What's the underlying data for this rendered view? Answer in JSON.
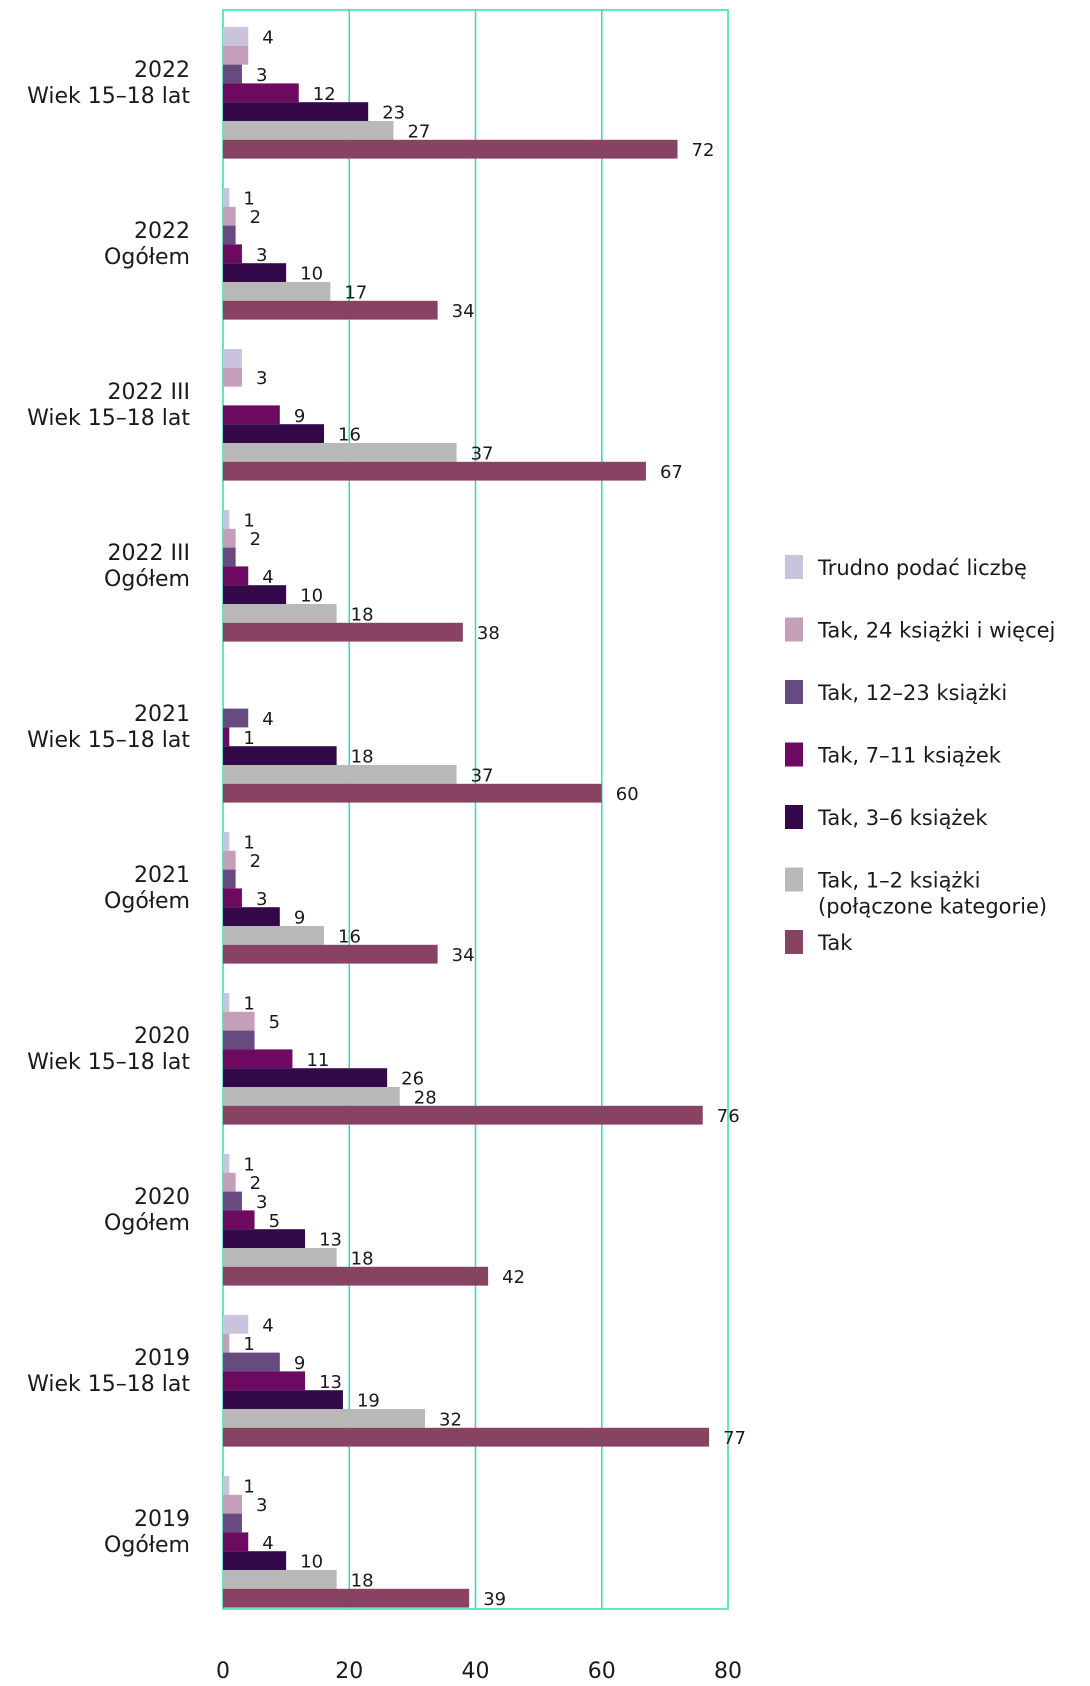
{
  "chart_data": {
    "type": "bar",
    "orientation": "horizontal",
    "xlim": [
      0,
      80
    ],
    "x_ticks": [
      "0",
      "20",
      "40",
      "60",
      "80"
    ],
    "grid": true,
    "legend_position": "right",
    "categories": [
      {
        "line1": "2022",
        "line2": "Wiek 15–18 lat"
      },
      {
        "line1": "2022",
        "line2": "Ogółem"
      },
      {
        "line1": "2022 III",
        "line2": "Wiek 15–18 lat"
      },
      {
        "line1": "2022 III",
        "line2": "Ogółem"
      },
      {
        "line1": "2021",
        "line2": "Wiek 15–18 lat"
      },
      {
        "line1": "2021",
        "line2": "Ogółem"
      },
      {
        "line1": "2020",
        "line2": "Wiek 15–18 lat"
      },
      {
        "line1": "2020",
        "line2": "Ogółem"
      },
      {
        "line1": "2019",
        "line2": "Wiek 15–18 lat"
      },
      {
        "line1": "2019",
        "line2": "Ogółem"
      }
    ],
    "series": [
      {
        "name": "Trudno podać liczbę",
        "color": "#c9c3dd",
        "values": [
          4,
          1,
          3,
          1,
          null,
          1,
          1,
          1,
          4,
          1
        ]
      },
      {
        "name": "Tak, 24 książki i więcej",
        "color": "#c49fb9",
        "values": [
          4,
          2,
          3,
          2,
          null,
          2,
          5,
          2,
          1,
          3
        ]
      },
      {
        "name": "Tak, 12–23 książki",
        "color": "#674a7f",
        "values": [
          3,
          2,
          null,
          2,
          4,
          2,
          5,
          3,
          9,
          3
        ]
      },
      {
        "name": "Tak, 7–11 książek",
        "color": "#6c0a62",
        "values": [
          12,
          3,
          9,
          4,
          1,
          3,
          11,
          5,
          13,
          4
        ]
      },
      {
        "name": "Tak, 3–6 książek",
        "color": "#33094a",
        "values": [
          23,
          10,
          16,
          10,
          18,
          9,
          26,
          13,
          19,
          10
        ]
      },
      {
        "name": "Tak, 1–2 książki",
        "name_line2": "(połączone kategorie)",
        "color": "#b8b8b8",
        "values": [
          27,
          17,
          37,
          18,
          37,
          16,
          28,
          18,
          32,
          18
        ]
      },
      {
        "name": "Tak",
        "color": "#884262",
        "values": [
          72,
          34,
          67,
          38,
          60,
          34,
          76,
          42,
          77,
          39
        ]
      }
    ],
    "value_labels": [
      [
        "4",
        "",
        "3",
        "12",
        "23",
        "27",
        "72"
      ],
      [
        "1",
        "2",
        "",
        "3",
        "10",
        "17",
        "34"
      ],
      [
        "",
        "3",
        "",
        "9",
        "16",
        "37",
        "67"
      ],
      [
        "1",
        "2",
        "",
        "4",
        "10",
        "18",
        "38"
      ],
      [
        "",
        "",
        "4",
        "1",
        "18",
        "37",
        "60"
      ],
      [
        "1",
        "2",
        "",
        "3",
        "9",
        "16",
        "34"
      ],
      [
        "1",
        "5",
        "",
        "11",
        "26",
        "28",
        "76"
      ],
      [
        "1",
        "2",
        "3",
        "5",
        "13",
        "18",
        "42"
      ],
      [
        "4",
        "1",
        "9",
        "13",
        "19",
        "32",
        "77"
      ],
      [
        "1",
        "3",
        "",
        "4",
        "10",
        "18",
        "39"
      ]
    ],
    "colors": {
      "grid": "#34dcb0",
      "text": "#1a1a1a"
    }
  }
}
